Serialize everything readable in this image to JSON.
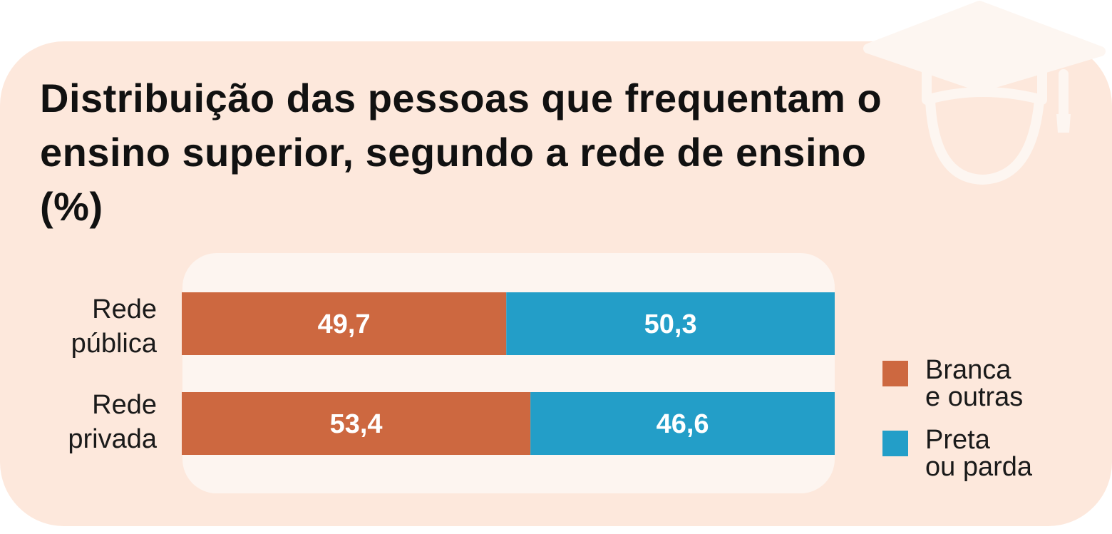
{
  "title": "Distribuição das pessoas que frequentam o ensino superior, segundo a rede de ensino (%)",
  "colors": {
    "background": "#fde8dc",
    "plot_background": "#fdf5f0",
    "branca": "#cd6840",
    "preta": "#239ec8"
  },
  "decoration": "graduation-cap-icon",
  "rows": [
    {
      "label_line1": "Rede",
      "label_line2": "pública"
    },
    {
      "label_line1": "Rede",
      "label_line2": "privada"
    }
  ],
  "legend": [
    {
      "line1": "Branca",
      "line2": "e outras"
    },
    {
      "line1": "Preta",
      "line2": "ou parda"
    }
  ],
  "chart_data": {
    "type": "bar",
    "orientation": "horizontal",
    "stacked": true,
    "title": "Distribuição das pessoas que frequentam o ensino superior, segundo a rede de ensino (%)",
    "categories": [
      "Rede pública",
      "Rede privada"
    ],
    "series": [
      {
        "name": "Branca e outras",
        "values": [
          49.7,
          53.4
        ],
        "labels": [
          "49,7",
          "53,4"
        ]
      },
      {
        "name": "Preta ou parda",
        "values": [
          50.3,
          46.6
        ],
        "labels": [
          "50,3",
          "46,6"
        ]
      }
    ],
    "xlim": [
      0,
      100
    ],
    "xlabel": "",
    "ylabel": "",
    "grid": false,
    "legend_position": "right"
  }
}
